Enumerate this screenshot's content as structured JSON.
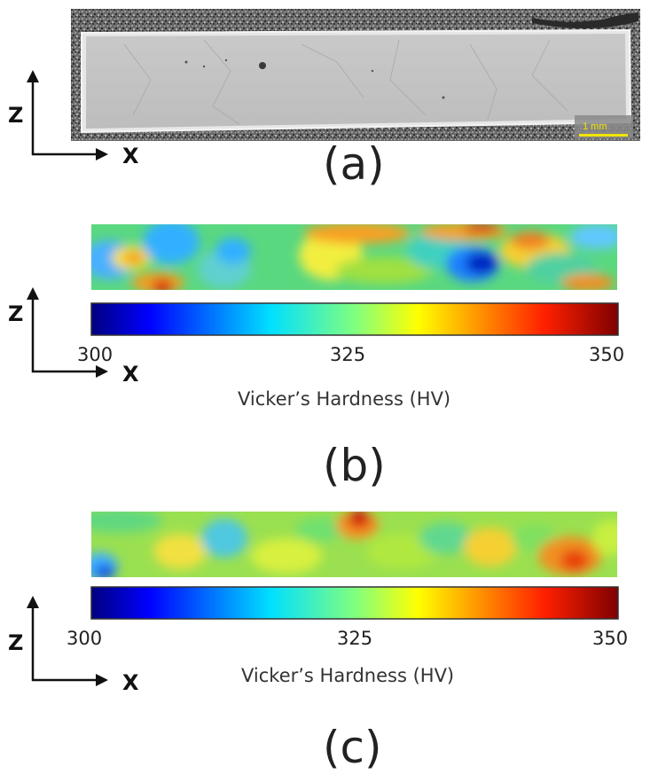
{
  "panels": {
    "a": {
      "label": "(a)",
      "axis_z": "Z",
      "axis_x": "X",
      "scale_bar": "1 mm"
    },
    "b": {
      "label": "(b)",
      "axis_z": "Z",
      "axis_x": "X",
      "colorbar": {
        "min": "300",
        "mid": "325",
        "max": "350",
        "title": "Vicker’s Hardness (HV)"
      }
    },
    "c": {
      "label": "(c)",
      "axis_z": "Z",
      "axis_x": "X",
      "colorbar": {
        "min": "300",
        "mid": "325",
        "max": "350",
        "title": "Vicker’s Hardness (HV)"
      }
    }
  },
  "colors": {
    "jet_low": "#00007f",
    "jet_mid": "#00ffff",
    "jet_high": "#7f0000",
    "scale_bar": "#f2e600"
  }
}
